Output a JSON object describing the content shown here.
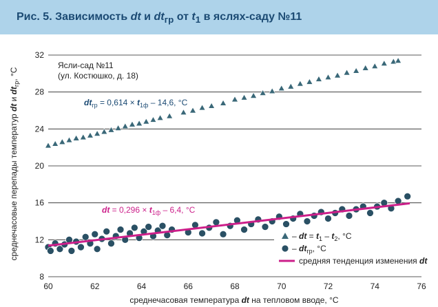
{
  "figure": {
    "prefix": "Рис. 5. Зависимость ",
    "var1": "dt",
    "and": " и ",
    "var2": "dt",
    "var2_sub": "гр",
    "from": " от ",
    "var3": "t",
    "var3_sub": "1",
    "suffix": " в яслях-саду №11"
  },
  "annotations": {
    "site_name": "Ясли-сад №11",
    "site_address": "(ул. Костюшко, д. 18)",
    "eq_upper": {
      "lhs": "dt",
      "lhs_sub": "гр",
      "mid": " = 0,614 × ",
      "var": "t",
      "var_sub": "1ф",
      "rest": " – 14,6, °C"
    },
    "eq_lower": {
      "lhs": "dt",
      "mid": " = 0,296 × ",
      "var": "t",
      "var_sub": "1ф",
      "rest": " – 6,4, °C"
    }
  },
  "legend": {
    "triangles": {
      "pre": "– ",
      "b1": "dt",
      "eq": " = ",
      "b2": "t",
      "s2": "1",
      "minus": " – ",
      "b3": "t",
      "s3": "2",
      "unit": ", °C"
    },
    "circles": {
      "pre": "– ",
      "b1": "dt",
      "s1": "гр",
      "unit": ", °C"
    },
    "trend": {
      "text": "средняя тенденция изменения ",
      "b": "dt"
    }
  },
  "axes": {
    "x_label_pre": "среднечасовая температура ",
    "x_label_var": "dt",
    "x_label_post": " на тепловом вводе, °C",
    "y_label_pre": "среднечасовые перепады температур ",
    "y_label_v1": "dt",
    "y_label_and": " и ",
    "y_label_v2": "dt",
    "y_label_v2_sub": "гр",
    "y_label_post": ", °C"
  },
  "colors": {
    "triangle_fill": "#3a6878",
    "circle_fill": "#2a5064",
    "trend": "#cc1f8a",
    "eq_upper": "#1b4a73",
    "eq_lower": "#cc1f8a",
    "header_band": "#aed3ea",
    "header_text": "#1b4a73"
  },
  "chart_data": {
    "type": "scatter",
    "xlim": [
      60,
      76
    ],
    "ylim": [
      8,
      32
    ],
    "x_ticks": [
      "60",
      "62",
      "64",
      "66",
      "68",
      "70",
      "72",
      "74",
      "76"
    ],
    "y_ticks": [
      "8",
      "12",
      "16",
      "20",
      "24",
      "28",
      "32"
    ],
    "grid": "horizontal",
    "legend_position": "bottom-right",
    "series": [
      {
        "marker": "triangle",
        "x_range": [
          60,
          75
        ],
        "fit": {
          "slope": 0.614,
          "intercept": -14.6
        },
        "points": [
          [
            60.0,
            22.2
          ],
          [
            60.3,
            22.4
          ],
          [
            60.6,
            22.6
          ],
          [
            60.9,
            22.8
          ],
          [
            61.2,
            23.0
          ],
          [
            61.5,
            23.1
          ],
          [
            61.8,
            23.3
          ],
          [
            62.1,
            23.5
          ],
          [
            62.4,
            23.7
          ],
          [
            62.7,
            23.9
          ],
          [
            63.0,
            24.1
          ],
          [
            63.3,
            24.3
          ],
          [
            63.6,
            24.5
          ],
          [
            63.9,
            24.6
          ],
          [
            64.2,
            24.8
          ],
          [
            64.5,
            25.0
          ],
          [
            64.8,
            25.2
          ],
          [
            65.2,
            25.4
          ],
          [
            65.8,
            25.8
          ],
          [
            66.2,
            26.0
          ],
          [
            66.6,
            26.3
          ],
          [
            67.0,
            26.5
          ],
          [
            67.5,
            26.8
          ],
          [
            68.0,
            27.2
          ],
          [
            68.4,
            27.4
          ],
          [
            68.8,
            27.6
          ],
          [
            69.2,
            27.9
          ],
          [
            69.6,
            28.1
          ],
          [
            70.0,
            28.4
          ],
          [
            70.4,
            28.6
          ],
          [
            70.8,
            28.9
          ],
          [
            71.2,
            29.1
          ],
          [
            71.6,
            29.4
          ],
          [
            72.0,
            29.6
          ],
          [
            72.4,
            29.8
          ],
          [
            72.8,
            30.1
          ],
          [
            73.2,
            30.3
          ],
          [
            73.6,
            30.6
          ],
          [
            74.0,
            30.8
          ],
          [
            74.4,
            31.1
          ],
          [
            74.8,
            31.3
          ],
          [
            75.0,
            31.4
          ]
        ]
      },
      {
        "marker": "circle",
        "x_range": [
          60,
          75.5
        ],
        "fit": {
          "slope": 0.296,
          "intercept": -6.4
        },
        "points": [
          [
            60.0,
            11.2
          ],
          [
            60.1,
            10.8
          ],
          [
            60.3,
            11.6
          ],
          [
            60.5,
            11.0
          ],
          [
            60.7,
            11.5
          ],
          [
            60.9,
            12.0
          ],
          [
            61.0,
            10.8
          ],
          [
            61.2,
            11.8
          ],
          [
            61.4,
            11.2
          ],
          [
            61.6,
            12.3
          ],
          [
            61.8,
            11.6
          ],
          [
            62.0,
            12.6
          ],
          [
            62.1,
            11.0
          ],
          [
            62.3,
            12.1
          ],
          [
            62.5,
            12.9
          ],
          [
            62.7,
            11.6
          ],
          [
            62.9,
            12.4
          ],
          [
            63.1,
            13.1
          ],
          [
            63.3,
            12.0
          ],
          [
            63.5,
            12.7
          ],
          [
            63.7,
            13.3
          ],
          [
            63.9,
            12.2
          ],
          [
            64.1,
            12.9
          ],
          [
            64.3,
            13.4
          ],
          [
            64.5,
            12.4
          ],
          [
            64.7,
            13.0
          ],
          [
            64.9,
            13.5
          ],
          [
            65.1,
            12.5
          ],
          [
            65.3,
            13.1
          ],
          [
            66.0,
            12.8
          ],
          [
            66.3,
            13.6
          ],
          [
            66.6,
            12.7
          ],
          [
            66.9,
            13.3
          ],
          [
            67.2,
            13.9
          ],
          [
            67.5,
            12.6
          ],
          [
            67.8,
            13.5
          ],
          [
            68.1,
            14.1
          ],
          [
            68.4,
            13.1
          ],
          [
            68.7,
            13.7
          ],
          [
            69.0,
            14.2
          ],
          [
            69.3,
            13.4
          ],
          [
            69.6,
            14.0
          ],
          [
            69.9,
            14.5
          ],
          [
            70.2,
            13.7
          ],
          [
            70.5,
            14.3
          ],
          [
            70.8,
            14.8
          ],
          [
            71.1,
            14.0
          ],
          [
            71.4,
            14.6
          ],
          [
            71.7,
            15.0
          ],
          [
            72.0,
            14.3
          ],
          [
            72.3,
            14.9
          ],
          [
            72.6,
            15.3
          ],
          [
            72.9,
            14.6
          ],
          [
            73.2,
            15.3
          ],
          [
            73.5,
            15.6
          ],
          [
            73.8,
            14.9
          ],
          [
            74.1,
            15.6
          ],
          [
            74.4,
            16.0
          ],
          [
            74.7,
            15.4
          ],
          [
            75.0,
            16.2
          ],
          [
            75.4,
            16.7
          ]
        ]
      }
    ]
  }
}
